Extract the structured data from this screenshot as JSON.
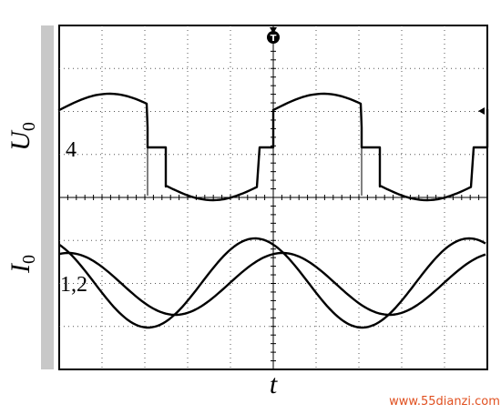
{
  "labels": {
    "voltage": "U",
    "voltage_sub": "0",
    "voltage_channel": "4",
    "current": "I",
    "current_sub": "0",
    "current_channel": "1,2",
    "time": "t",
    "trigger": "T",
    "watermark": "www.55dianzi.com"
  }
}
